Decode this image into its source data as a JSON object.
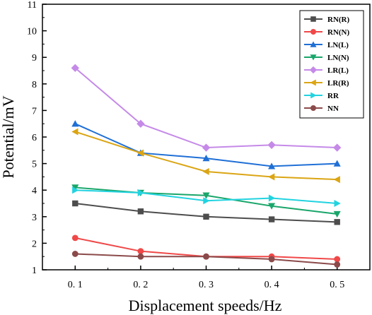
{
  "chart_data": {
    "type": "line",
    "xlabel": "Displacement speeds/Hz",
    "ylabel": "Potential/mV",
    "x": [
      0.1,
      0.2,
      0.3,
      0.4,
      0.5
    ],
    "x_tick_labels": [
      "0. 1",
      "0. 2",
      "0. 3",
      "0. 4",
      "0. 5"
    ],
    "xlim": [
      0.05,
      0.55
    ],
    "ylim": [
      1,
      11
    ],
    "y_ticks": [
      1,
      2,
      3,
      4,
      5,
      6,
      7,
      8,
      9,
      10,
      11
    ],
    "grid": false,
    "legend_position": "top-right",
    "series": [
      {
        "name": "RN(R)",
        "color": "#4d4d4d",
        "marker": "square",
        "values": [
          3.5,
          3.2,
          3.0,
          2.9,
          2.8
        ]
      },
      {
        "name": "RN(N)",
        "color": "#f04848",
        "marker": "circle",
        "values": [
          2.2,
          1.7,
          1.5,
          1.5,
          1.4
        ]
      },
      {
        "name": "LN(L)",
        "color": "#1f6fd6",
        "marker": "triangle-up",
        "values": [
          6.5,
          5.4,
          5.2,
          4.9,
          5.0
        ]
      },
      {
        "name": "LN(N)",
        "color": "#1aa66a",
        "marker": "triangle-down",
        "values": [
          4.1,
          3.9,
          3.8,
          3.4,
          3.1
        ]
      },
      {
        "name": "LR(L)",
        "color": "#c58ae8",
        "marker": "diamond",
        "values": [
          8.6,
          6.5,
          5.6,
          5.7,
          5.6
        ]
      },
      {
        "name": "LR(R)",
        "color": "#dba514",
        "marker": "triangle-left",
        "values": [
          6.2,
          5.4,
          4.7,
          4.5,
          4.4
        ]
      },
      {
        "name": "RR",
        "color": "#22d3e0",
        "marker": "triangle-right",
        "values": [
          4.0,
          3.9,
          3.6,
          3.7,
          3.5
        ]
      },
      {
        "name": "NN",
        "color": "#8b4a4a",
        "marker": "circle",
        "values": [
          1.6,
          1.5,
          1.5,
          1.4,
          1.2
        ]
      }
    ]
  }
}
